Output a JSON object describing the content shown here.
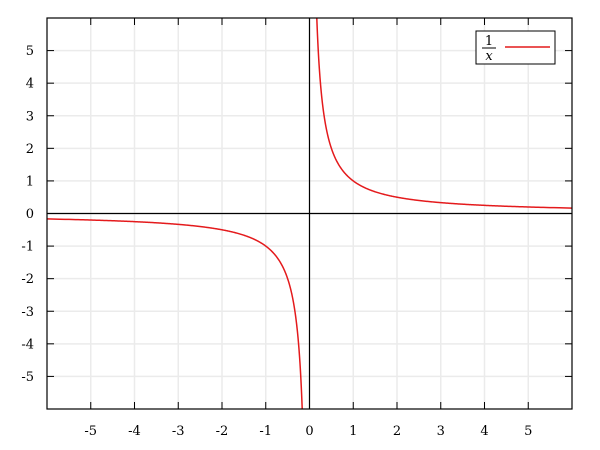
{
  "chart_data": {
    "type": "line",
    "title": "",
    "xlabel": "",
    "ylabel": "",
    "xlim": [
      -6,
      6
    ],
    "ylim": [
      -6,
      6
    ],
    "xticks": [
      -5,
      -4,
      -3,
      -2,
      -1,
      0,
      1,
      2,
      3,
      4,
      5
    ],
    "yticks": [
      -5,
      -4,
      -3,
      -2,
      -1,
      0,
      1,
      2,
      3,
      4,
      5
    ],
    "grid": true,
    "axes_lines_at_zero": true,
    "legend_placement": "top-right",
    "series": [
      {
        "name": "1/x",
        "name_numerator": "1",
        "name_denominator": "x",
        "function": "1/x",
        "color": "#e41a1c",
        "x": [
          -6,
          -5,
          -4,
          -3,
          -2,
          -1,
          -0.5,
          -0.25,
          -0.167,
          0.167,
          0.25,
          0.5,
          1,
          2,
          3,
          4,
          5,
          6
        ],
        "y": [
          -0.167,
          -0.2,
          -0.25,
          -0.333,
          -0.5,
          -1,
          -2,
          -4,
          -6,
          6,
          4,
          2,
          1,
          0.5,
          0.333,
          0.25,
          0.2,
          0.167
        ]
      }
    ]
  }
}
